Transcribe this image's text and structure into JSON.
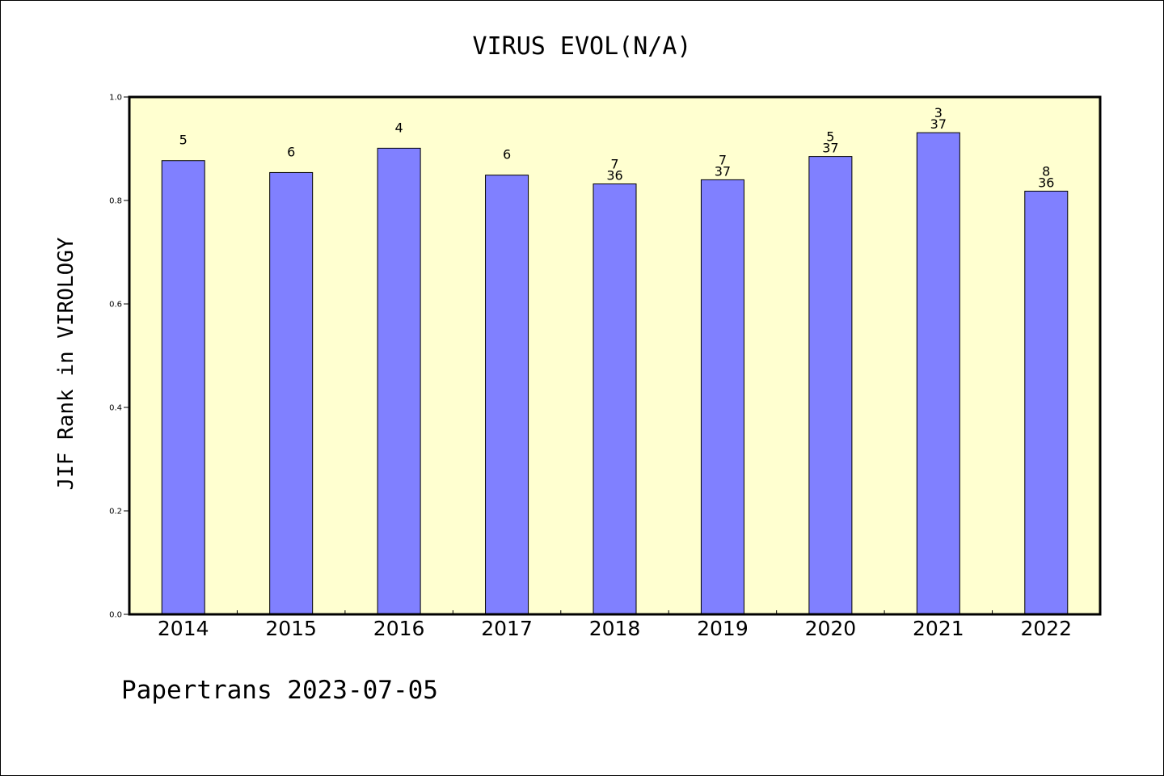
{
  "footer": "Papertrans 2023-07-05",
  "colors": {
    "background": "#ffffff",
    "plot_background": "#ffffd0",
    "bar_fill": "#8080ff",
    "bar_stroke": "#000000"
  },
  "chart_data": {
    "type": "bar",
    "title": "VIRUS EVOL(N/A)",
    "xlabel": "",
    "ylabel": "JIF Rank in VIROLOGY",
    "ylim": [
      0,
      1.0
    ],
    "yticks": [
      "0.0",
      "0.2",
      "0.4",
      "0.6",
      "0.8",
      "1.0"
    ],
    "grid": false,
    "categories": [
      "2014",
      "2015",
      "2016",
      "2017",
      "2018",
      "2019",
      "2020",
      "2021",
      "2022"
    ],
    "values": [
      0.877,
      0.854,
      0.901,
      0.849,
      0.832,
      0.84,
      0.885,
      0.931,
      0.818
    ],
    "rank_labels": [
      "5",
      "6",
      "4",
      "6",
      "7",
      "7",
      "5",
      "3",
      "8"
    ],
    "total_labels": [
      "",
      "",
      "",
      "",
      "36",
      "37",
      "37",
      "37",
      "36"
    ]
  }
}
